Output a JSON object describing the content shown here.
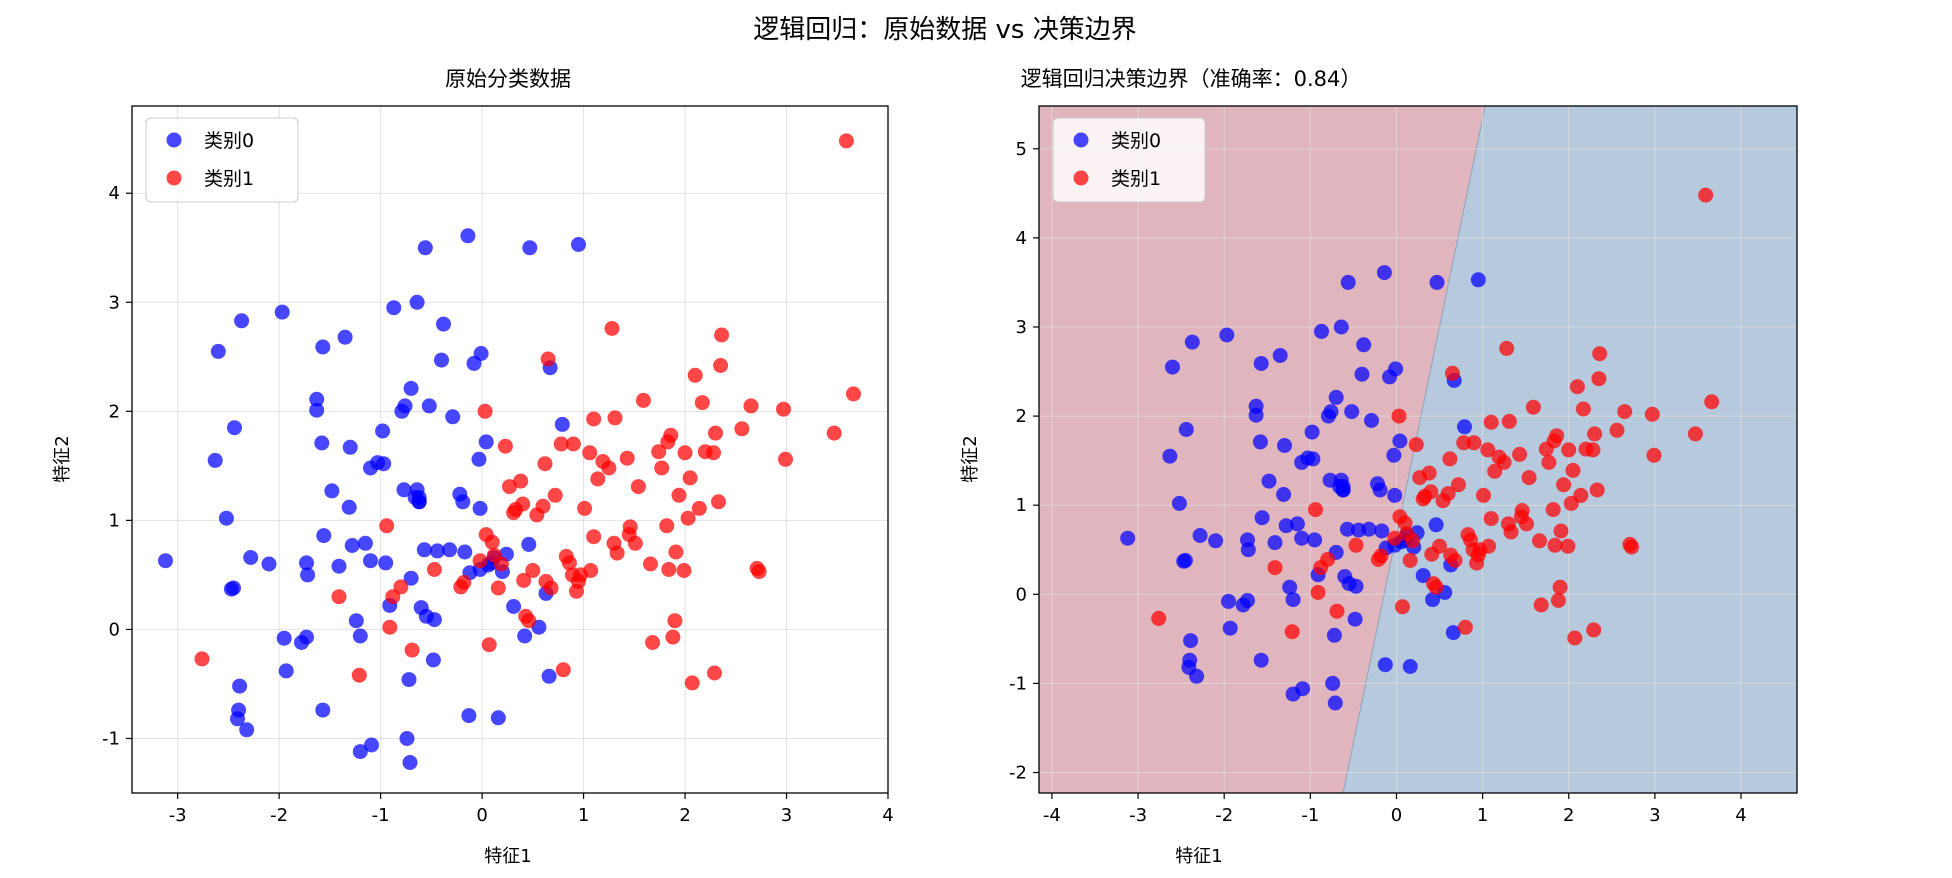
{
  "figure": {
    "suptitle": "逻辑回归：原始数据 vs 决策边界"
  },
  "colors": {
    "class0": "#0000ff",
    "class1": "#ff0000",
    "region_class0": "#b6c9dd",
    "region_class1": "#e0b5bd",
    "grid": "#dcdcdc",
    "axis": "#000000"
  },
  "chart_data": [
    {
      "type": "scatter",
      "title": "原始分类数据",
      "xlabel": "特征1",
      "ylabel": "特征2",
      "xlim": [
        -3.45,
        4.0
      ],
      "ylim": [
        -1.5,
        4.8
      ],
      "xticks": [
        -3,
        -2,
        -1,
        0,
        1,
        2,
        3,
        4
      ],
      "yticks": [
        -1,
        0,
        1,
        2,
        3,
        4
      ],
      "grid": true,
      "legend_position": "upper-left",
      "decision_region": false,
      "series": [
        {
          "name": "类别0",
          "color_key": "class0",
          "source": "class0"
        },
        {
          "name": "类别1",
          "color_key": "class1",
          "source": "class1"
        }
      ]
    },
    {
      "type": "scatter",
      "title": "逻辑回归决策边界（准确率：0.84）",
      "xlabel": "特征1",
      "ylabel": "特征2",
      "xlim": [
        -4.15,
        4.65
      ],
      "ylim": [
        -2.23,
        5.48
      ],
      "xticks": [
        -4,
        -3,
        -2,
        -1,
        0,
        1,
        2,
        3,
        4
      ],
      "yticks": [
        -2,
        -1,
        0,
        1,
        2,
        3,
        4,
        5
      ],
      "grid": true,
      "legend_position": "upper-left",
      "decision_region": true,
      "decision_boundary": [
        [
          -0.62,
          -2.23
        ],
        [
          1.03,
          5.48
        ]
      ],
      "series": [
        {
          "name": "类别0",
          "color_key": "class0",
          "source": "class0"
        },
        {
          "name": "类别1",
          "color_key": "class1",
          "source": "class1"
        }
      ]
    }
  ],
  "points": {
    "class0": [
      [
        -3.12,
        0.63
      ],
      [
        -2.6,
        2.55
      ],
      [
        -2.52,
        1.02
      ],
      [
        -2.37,
        2.83
      ],
      [
        -2.44,
        1.85
      ],
      [
        -2.63,
        1.55
      ],
      [
        -2.47,
        0.37
      ],
      [
        -2.45,
        0.38
      ],
      [
        -2.39,
        -0.52
      ],
      [
        -2.4,
        -0.74
      ],
      [
        -2.41,
        -0.82
      ],
      [
        -2.32,
        -0.92
      ],
      [
        -2.28,
        0.66
      ],
      [
        -2.1,
        0.6
      ],
      [
        -1.97,
        2.91
      ],
      [
        -1.95,
        -0.08
      ],
      [
        -1.93,
        -0.38
      ],
      [
        -1.78,
        -0.12
      ],
      [
        -1.73,
        -0.07
      ],
      [
        -1.73,
        0.61
      ],
      [
        -1.72,
        0.5
      ],
      [
        -1.63,
        2.11
      ],
      [
        -1.63,
        2.01
      ],
      [
        -1.57,
        2.59
      ],
      [
        -1.58,
        1.71
      ],
      [
        -1.56,
        0.86
      ],
      [
        -1.57,
        -0.74
      ],
      [
        -1.48,
        1.27
      ],
      [
        -1.41,
        0.58
      ],
      [
        -1.35,
        2.68
      ],
      [
        -1.3,
        1.67
      ],
      [
        -1.31,
        1.12
      ],
      [
        -1.28,
        0.77
      ],
      [
        -1.24,
        0.08
      ],
      [
        -1.2,
        -0.06
      ],
      [
        -1.2,
        -1.12
      ],
      [
        -1.15,
        0.79
      ],
      [
        -1.1,
        1.48
      ],
      [
        -1.1,
        0.63
      ],
      [
        -1.09,
        -1.06
      ],
      [
        -1.03,
        1.53
      ],
      [
        -0.98,
        1.82
      ],
      [
        -0.97,
        1.52
      ],
      [
        -0.95,
        0.61
      ],
      [
        -0.91,
        0.22
      ],
      [
        -0.87,
        2.95
      ],
      [
        -0.79,
        2.0
      ],
      [
        -0.77,
        1.28
      ],
      [
        -0.76,
        2.05
      ],
      [
        -0.74,
        -1.0
      ],
      [
        -0.72,
        -0.46
      ],
      [
        -0.71,
        -1.22
      ],
      [
        -0.7,
        0.47
      ],
      [
        -0.7,
        2.21
      ],
      [
        -0.64,
        1.28
      ],
      [
        -0.62,
        1.21
      ],
      [
        -0.62,
        1.17
      ],
      [
        -0.64,
        3.0
      ],
      [
        -0.6,
        0.2
      ],
      [
        -0.55,
        0.12
      ],
      [
        -0.56,
        3.5
      ],
      [
        -0.52,
        2.05
      ],
      [
        -0.48,
        -0.28
      ],
      [
        -0.47,
        0.09
      ],
      [
        -0.44,
        0.72
      ],
      [
        -0.4,
        2.47
      ],
      [
        -0.38,
        2.8
      ],
      [
        -0.32,
        0.73
      ],
      [
        -0.29,
        1.95
      ],
      [
        -0.22,
        1.24
      ],
      [
        -0.19,
        1.17
      ],
      [
        -0.17,
        0.71
      ],
      [
        -0.13,
        -0.79
      ],
      [
        -0.12,
        0.52
      ],
      [
        -0.14,
        3.61
      ],
      [
        -0.08,
        2.44
      ],
      [
        -0.03,
        1.56
      ],
      [
        -0.01,
        2.53
      ],
      [
        0.04,
        1.72
      ],
      [
        0.06,
        0.59
      ],
      [
        0.12,
        0.66
      ],
      [
        0.16,
        -0.81
      ],
      [
        0.2,
        0.53
      ],
      [
        0.24,
        0.69
      ],
      [
        0.31,
        0.21
      ],
      [
        0.46,
        0.78
      ],
      [
        0.47,
        3.5
      ],
      [
        0.56,
        0.02
      ],
      [
        0.63,
        0.33
      ],
      [
        0.66,
        -0.43
      ],
      [
        0.67,
        2.4
      ],
      [
        0.79,
        1.88
      ],
      [
        0.95,
        3.53
      ],
      [
        0.42,
        -0.06
      ],
      [
        -0.02,
        1.11
      ],
      [
        -0.02,
        0.55
      ],
      [
        0.09,
        0.61
      ],
      [
        -0.57,
        0.73
      ],
      [
        -0.62,
        1.17
      ],
      [
        -0.66,
        1.21
      ]
    ],
    "class1": [
      [
        -2.76,
        -0.27
      ],
      [
        -1.41,
        0.3
      ],
      [
        -1.21,
        -0.42
      ],
      [
        -0.94,
        0.95
      ],
      [
        -0.91,
        0.02
      ],
      [
        -0.88,
        0.3
      ],
      [
        -0.8,
        0.39
      ],
      [
        -0.69,
        -0.19
      ],
      [
        -0.47,
        0.55
      ],
      [
        -0.21,
        0.39
      ],
      [
        -0.18,
        0.43
      ],
      [
        -0.02,
        0.63
      ],
      [
        0.03,
        2.0
      ],
      [
        0.04,
        0.87
      ],
      [
        0.07,
        -0.14
      ],
      [
        0.1,
        0.8
      ],
      [
        0.12,
        0.68
      ],
      [
        0.16,
        0.38
      ],
      [
        0.19,
        0.6
      ],
      [
        0.23,
        1.68
      ],
      [
        0.27,
        1.31
      ],
      [
        0.31,
        1.07
      ],
      [
        0.33,
        1.1
      ],
      [
        0.38,
        1.36
      ],
      [
        0.4,
        1.15
      ],
      [
        0.41,
        0.45
      ],
      [
        0.43,
        0.12
      ],
      [
        0.46,
        0.08
      ],
      [
        0.5,
        0.54
      ],
      [
        0.54,
        1.05
      ],
      [
        0.6,
        1.13
      ],
      [
        0.62,
        1.52
      ],
      [
        0.63,
        0.44
      ],
      [
        0.65,
        2.48
      ],
      [
        0.68,
        0.38
      ],
      [
        0.72,
        1.23
      ],
      [
        0.78,
        1.7
      ],
      [
        0.8,
        -0.37
      ],
      [
        0.83,
        0.67
      ],
      [
        0.86,
        0.61
      ],
      [
        0.89,
        0.5
      ],
      [
        0.9,
        1.7
      ],
      [
        0.93,
        0.35
      ],
      [
        0.95,
        0.44
      ],
      [
        0.97,
        0.5
      ],
      [
        1.01,
        1.11
      ],
      [
        1.06,
        1.62
      ],
      [
        1.07,
        0.54
      ],
      [
        1.1,
        1.93
      ],
      [
        1.14,
        1.38
      ],
      [
        1.19,
        1.54
      ],
      [
        1.25,
        1.48
      ],
      [
        1.28,
        2.76
      ],
      [
        1.3,
        0.79
      ],
      [
        1.31,
        1.94
      ],
      [
        1.33,
        0.7
      ],
      [
        1.43,
        1.57
      ],
      [
        1.45,
        0.87
      ],
      [
        1.51,
        0.79
      ],
      [
        1.59,
        2.1
      ],
      [
        1.66,
        0.6
      ],
      [
        1.68,
        -0.12
      ],
      [
        1.74,
        1.63
      ],
      [
        1.77,
        1.48
      ],
      [
        1.82,
        0.95
      ],
      [
        1.84,
        0.55
      ],
      [
        1.86,
        1.78
      ],
      [
        1.88,
        -0.07
      ],
      [
        1.9,
        0.08
      ],
      [
        1.91,
        0.71
      ],
      [
        1.94,
        1.23
      ],
      [
        2.0,
        1.62
      ],
      [
        2.05,
        1.39
      ],
      [
        2.07,
        -0.49
      ],
      [
        2.1,
        2.33
      ],
      [
        2.14,
        1.11
      ],
      [
        2.17,
        2.08
      ],
      [
        2.2,
        1.63
      ],
      [
        2.28,
        1.62
      ],
      [
        2.29,
        -0.4
      ],
      [
        2.3,
        1.8
      ],
      [
        2.33,
        1.17
      ],
      [
        2.36,
        2.7
      ],
      [
        2.35,
        2.42
      ],
      [
        2.56,
        1.84
      ],
      [
        2.65,
        2.05
      ],
      [
        2.71,
        0.56
      ],
      [
        2.73,
        0.53
      ],
      [
        2.97,
        2.02
      ],
      [
        2.99,
        1.56
      ],
      [
        3.47,
        1.8
      ],
      [
        3.59,
        4.48
      ],
      [
        3.66,
        2.16
      ],
      [
        2.03,
        1.02
      ],
      [
        1.54,
        1.31
      ],
      [
        1.99,
        0.54
      ],
      [
        1.1,
        0.85
      ],
      [
        1.46,
        0.94
      ],
      [
        1.83,
        1.72
      ]
    ]
  }
}
